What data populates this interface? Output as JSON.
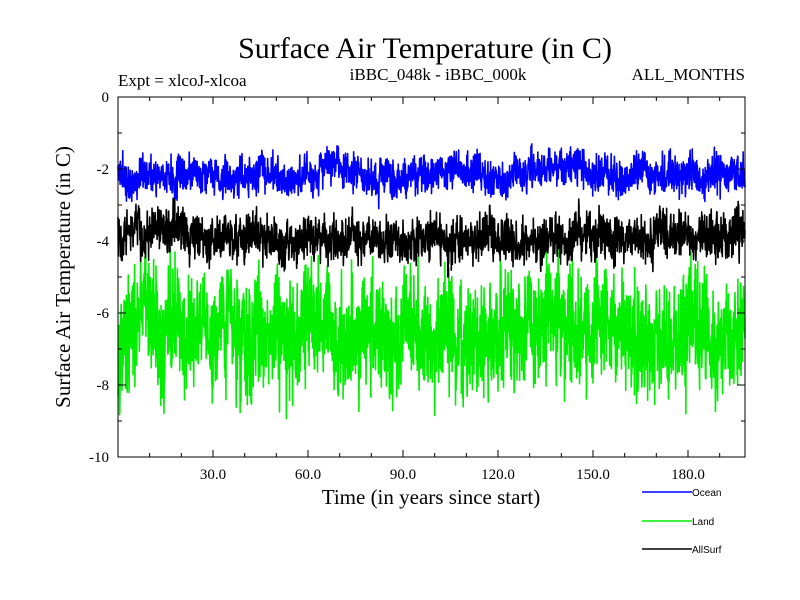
{
  "chart_data": {
    "type": "line",
    "title": "Surface Air Temperature (in C)",
    "subtitle_left": "Expt = xlcoJ-xlcoa",
    "subtitle_center": "iBBC_048k - iBBC_000k",
    "subtitle_right": "ALL_MONTHS",
    "xlabel": "Time (in years since start)",
    "ylabel": "Surface Air Temperature (in C)",
    "xlim": [
      0,
      198
    ],
    "ylim": [
      -10,
      0
    ],
    "x_ticks": [
      30,
      60,
      90,
      120,
      150,
      180
    ],
    "x_tick_labels": [
      "30.0",
      "60.0",
      "90.0",
      "120.0",
      "150.0",
      "180.0"
    ],
    "y_ticks": [
      0,
      -2,
      -4,
      -6,
      -8,
      -10
    ],
    "y_tick_labels": [
      "0",
      "-2",
      "-4",
      "-6",
      "-8",
      "-10"
    ],
    "grid": false,
    "legend_position": "bottom-right",
    "samples_per_year": 12,
    "series": [
      {
        "name": "Ocean",
        "color": "#0000ff",
        "mean": -2.15,
        "noise_amplitude": 0.45,
        "approx_range": [
          -3.1,
          -1.2
        ]
      },
      {
        "name": "Land",
        "color": "#00ee00",
        "mean": -6.7,
        "noise_amplitude": 1.4,
        "approx_range": [
          -9.5,
          -3.9
        ]
      },
      {
        "name": "AllSurf",
        "color": "#000000",
        "mean": -3.9,
        "noise_amplitude": 0.55,
        "approx_range": [
          -5.0,
          -2.8
        ]
      }
    ]
  }
}
